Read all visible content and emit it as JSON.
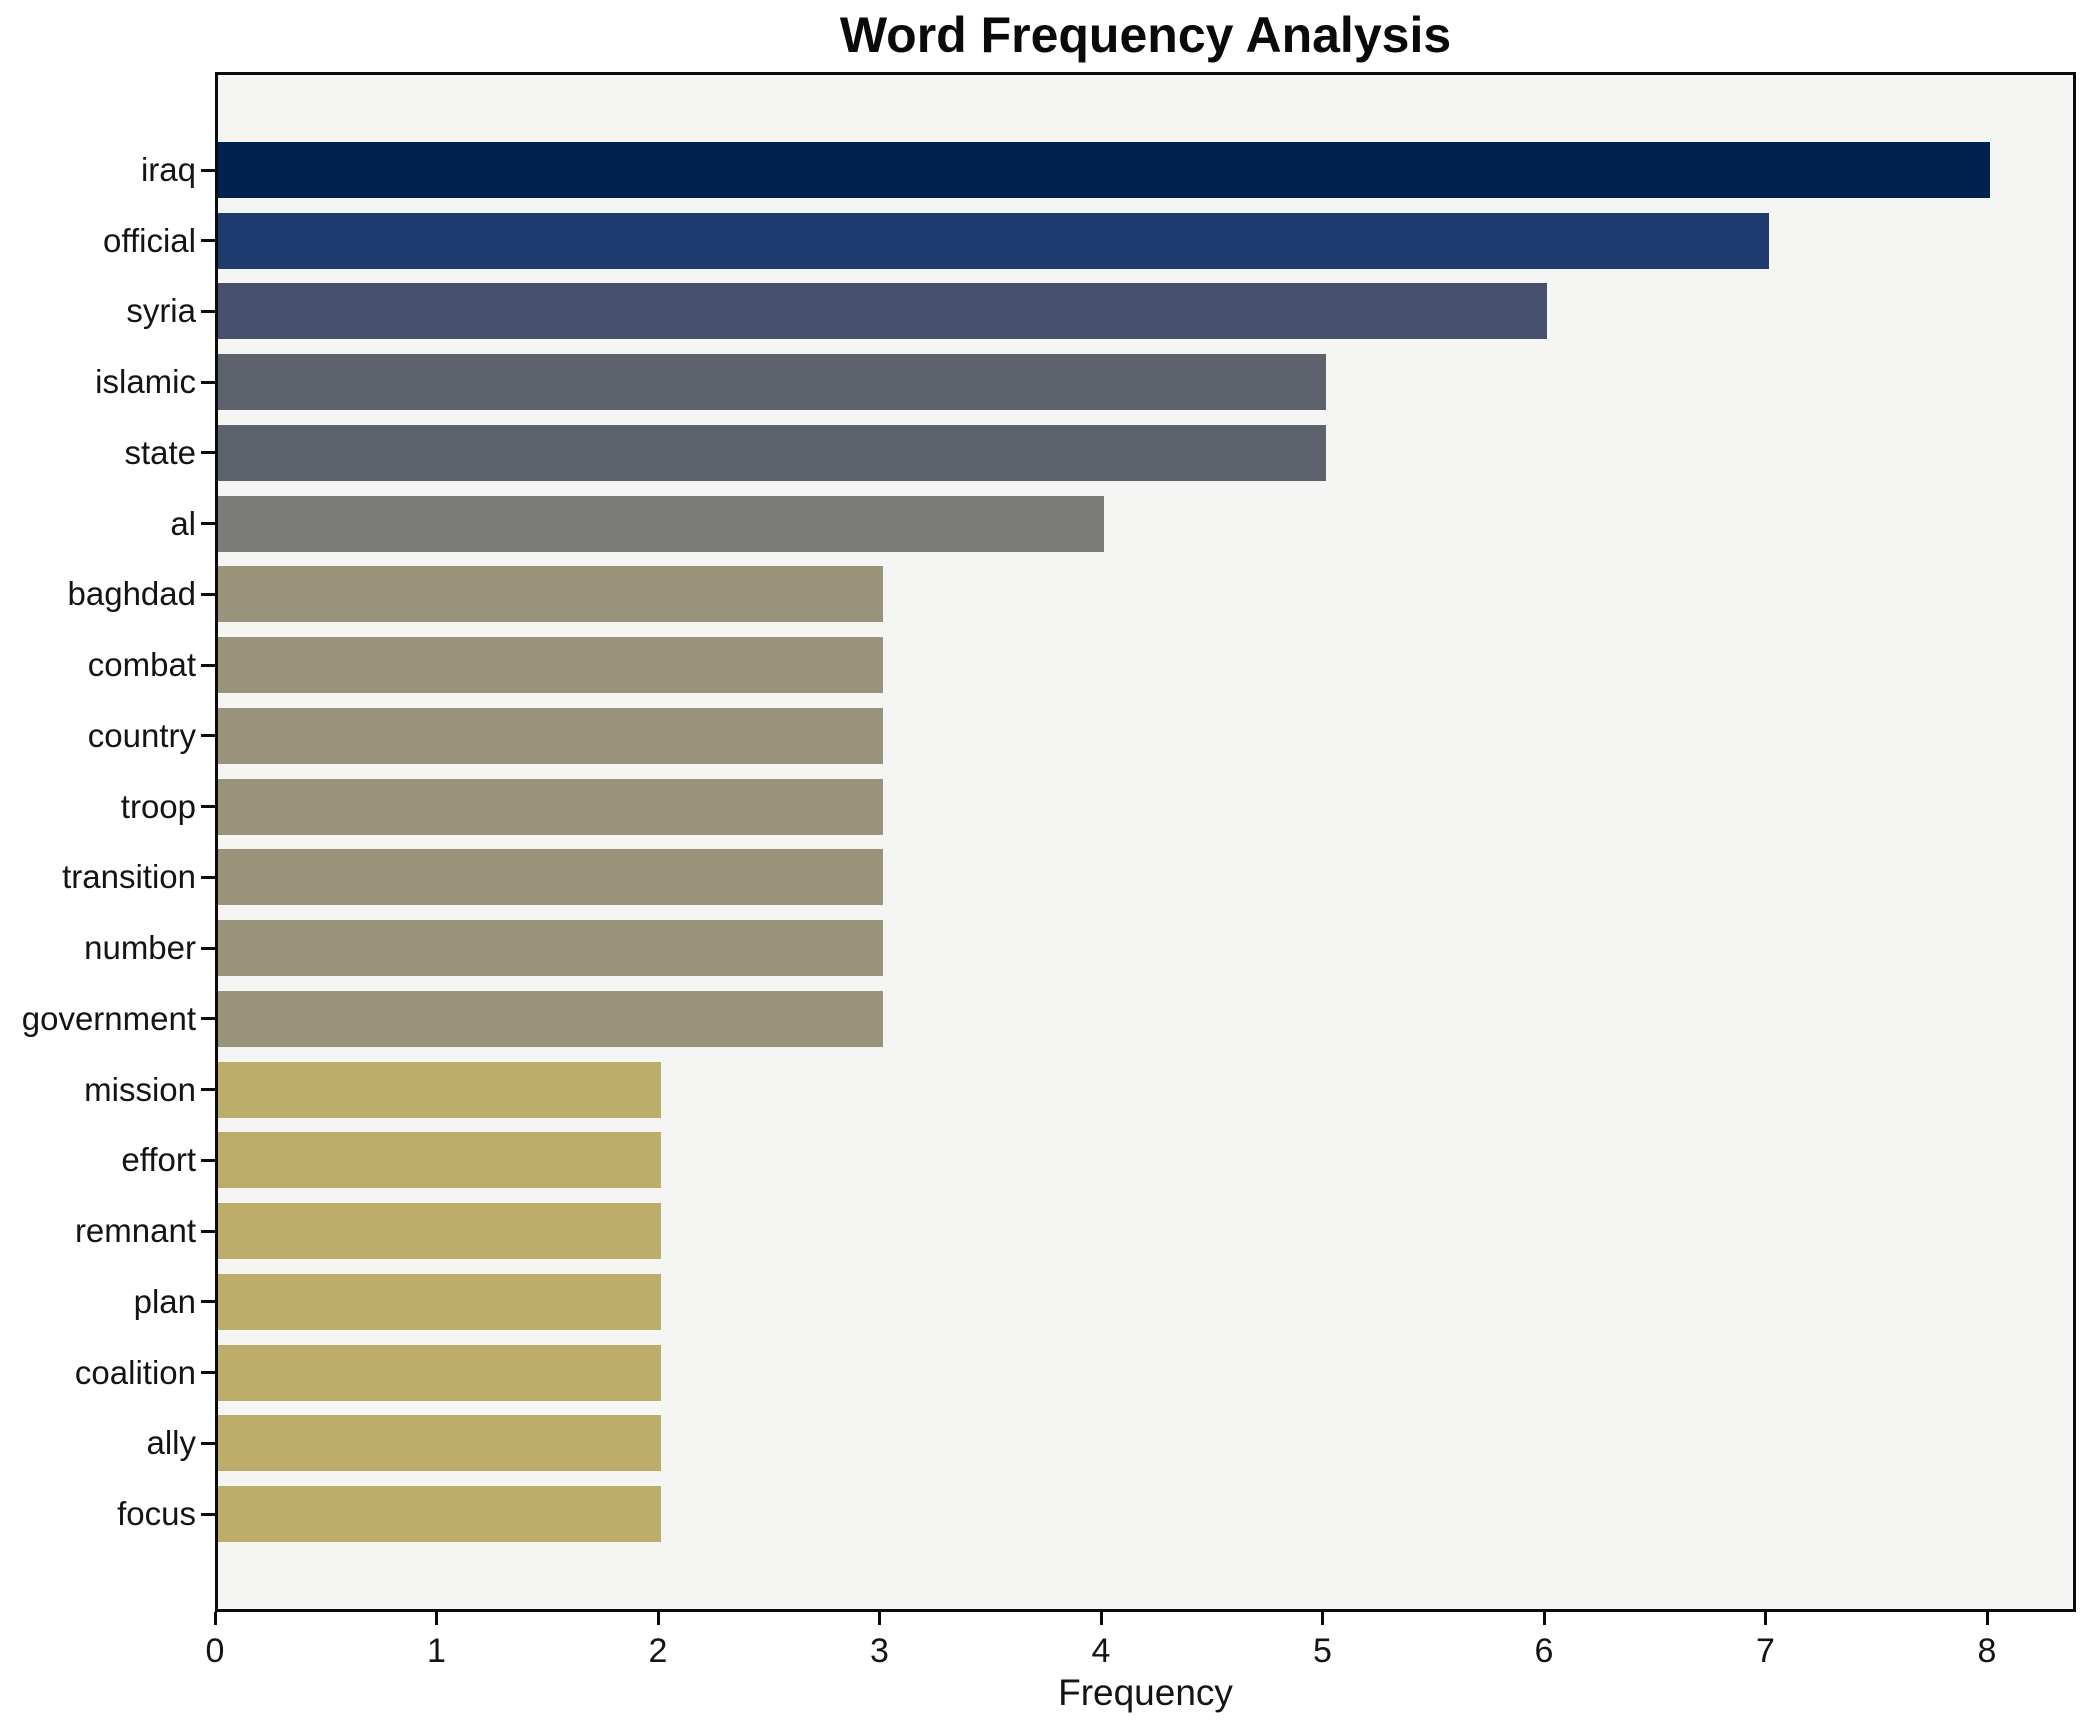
{
  "figure": {
    "background": "#ffffff",
    "plot_background": "#f5f5f4",
    "axis_color": "#0b0b0b",
    "text_color": "#141414"
  },
  "chart_data": {
    "type": "bar",
    "orientation": "horizontal",
    "title": "Word Frequency Analysis",
    "xlabel": "Frequency",
    "ylabel": "",
    "xlim": [
      0,
      8.4
    ],
    "xticks": [
      0,
      1,
      2,
      3,
      4,
      5,
      6,
      7,
      8
    ],
    "grid": false,
    "legend": null,
    "categories": [
      "iraq",
      "official",
      "syria",
      "islamic",
      "state",
      "al",
      "baghdad",
      "combat",
      "country",
      "troop",
      "transition",
      "number",
      "government",
      "mission",
      "effort",
      "remnant",
      "plan",
      "coalition",
      "ally",
      "focus"
    ],
    "values": [
      8,
      7,
      6,
      5,
      5,
      4,
      3,
      3,
      3,
      3,
      3,
      3,
      3,
      2,
      2,
      2,
      2,
      2,
      2,
      2
    ],
    "colors": [
      "#00224e",
      "#1f3a6f",
      "#46506e",
      "#5d626d",
      "#5d626d",
      "#7b7b78",
      "#99937b",
      "#99937b",
      "#99937b",
      "#99937b",
      "#99937b",
      "#99937b",
      "#99937b",
      "#bcad6b",
      "#bcad6b",
      "#bcad6b",
      "#bcad6b",
      "#bcad6b",
      "#bcad6b",
      "#bcad6b"
    ]
  }
}
